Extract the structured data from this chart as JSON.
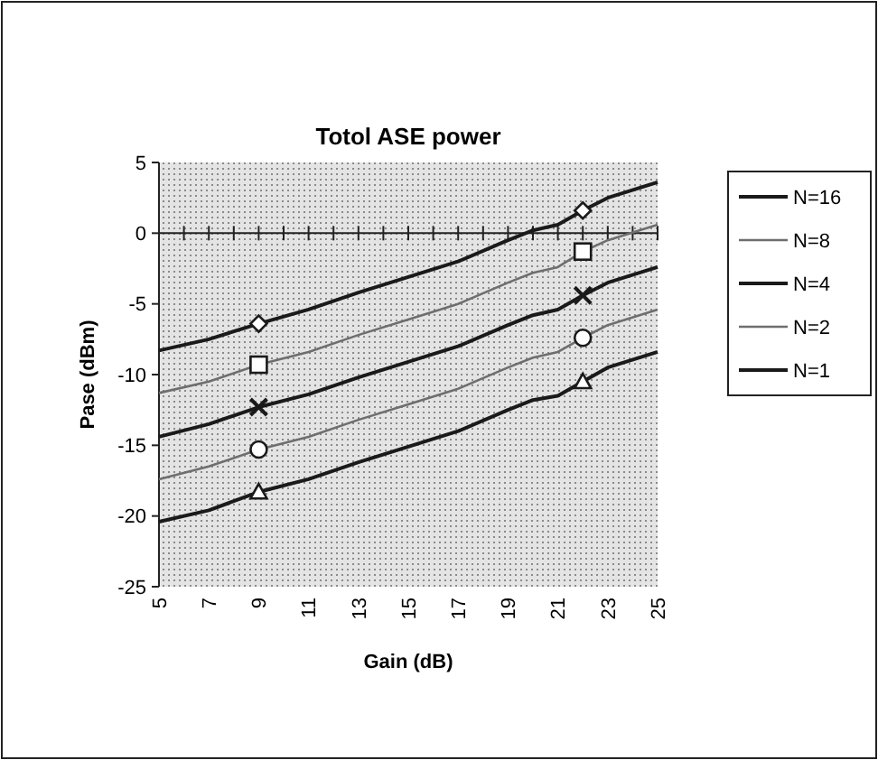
{
  "chart_data": {
    "type": "line",
    "title": "Totol ASE power",
    "xlabel": "Gain (dB)",
    "ylabel": "Pase (dBm)",
    "xlim": [
      5,
      25
    ],
    "xticks": [
      5,
      7,
      9,
      11,
      13,
      15,
      17,
      19,
      21,
      23,
      25
    ],
    "ylim": [
      -25,
      5
    ],
    "yticks": [
      -25,
      -20,
      -15,
      -10,
      -5,
      0,
      5
    ],
    "legend": "right",
    "marker": "none",
    "line_style": "solid",
    "series": [
      {
        "name": "N=16",
        "color": "#1a1a1a",
        "x": [
          5,
          7,
          9,
          11,
          13,
          15,
          17,
          19,
          20,
          21,
          22,
          23,
          25
        ],
        "values": [
          -8.3,
          -7.5,
          -6.4,
          -5.4,
          -4.2,
          -3.1,
          -2.0,
          -0.5,
          0.2,
          0.6,
          1.6,
          2.5,
          3.6
        ]
      },
      {
        "name": "N=8",
        "color": "#6e6e6e",
        "x": [
          5,
          7,
          9,
          11,
          13,
          15,
          17,
          19,
          20,
          21,
          22,
          23,
          25
        ],
        "values": [
          -11.3,
          -10.5,
          -9.3,
          -8.4,
          -7.2,
          -6.1,
          -5.0,
          -3.5,
          -2.8,
          -2.4,
          -1.3,
          -0.5,
          0.6
        ]
      },
      {
        "name": "N=4",
        "color": "#1a1a1a",
        "x": [
          5,
          7,
          9,
          11,
          13,
          15,
          17,
          19,
          20,
          21,
          22,
          23,
          25
        ],
        "values": [
          -14.4,
          -13.5,
          -12.3,
          -11.4,
          -10.2,
          -9.1,
          -8.0,
          -6.5,
          -5.8,
          -5.4,
          -4.4,
          -3.5,
          -2.4
        ]
      },
      {
        "name": "N=2",
        "color": "#6e6e6e",
        "x": [
          5,
          7,
          9,
          11,
          13,
          15,
          17,
          19,
          20,
          21,
          22,
          23,
          25
        ],
        "values": [
          -17.4,
          -16.5,
          -15.3,
          -14.4,
          -13.2,
          -12.1,
          -11.0,
          -9.5,
          -8.8,
          -8.4,
          -7.4,
          -6.5,
          -5.4
        ]
      },
      {
        "name": "N=1",
        "color": "#1a1a1a",
        "x": [
          5,
          7,
          9,
          11,
          13,
          15,
          17,
          19,
          20,
          21,
          22,
          23,
          25
        ],
        "values": [
          -20.4,
          -19.6,
          -18.3,
          -17.4,
          -16.2,
          -15.1,
          -14.0,
          -12.5,
          -11.8,
          -11.5,
          -10.5,
          -9.5,
          -8.4
        ]
      },
      {
        "type": "scatter",
        "marker": "diamond",
        "color": "#1a1a1a",
        "x": [
          9,
          22
        ],
        "values": [
          -6.4,
          1.6
        ]
      },
      {
        "type": "scatter",
        "marker": "square",
        "color": "#1a1a1a",
        "x": [
          9,
          22
        ],
        "values": [
          -9.3,
          -1.3
        ]
      },
      {
        "type": "scatter",
        "marker": "cross",
        "color": "#1a1a1a",
        "x": [
          9,
          22
        ],
        "values": [
          -12.3,
          -4.4
        ]
      },
      {
        "type": "scatter",
        "marker": "circle",
        "color": "#1a1a1a",
        "x": [
          9,
          22
        ],
        "values": [
          -15.3,
          -7.4
        ]
      },
      {
        "type": "scatter",
        "marker": "triangle",
        "color": "#1a1a1a",
        "x": [
          9,
          22
        ],
        "values": [
          -18.3,
          -10.5
        ]
      }
    ]
  }
}
